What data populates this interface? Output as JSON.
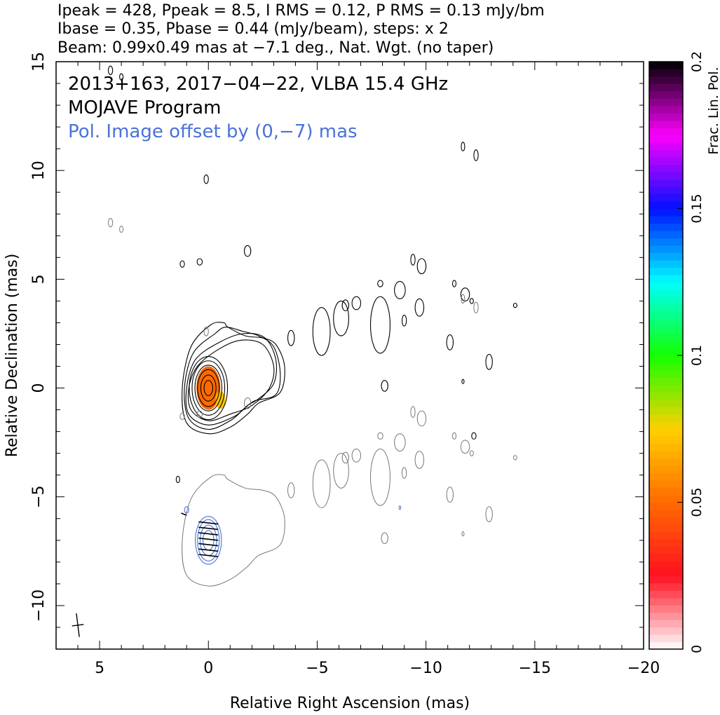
{
  "header": {
    "line1": "Ipeak = 428, Ppeak = 8.5, I RMS = 0.12, P RMS = 0.13 mJy/bm",
    "line2": "Ibase = 0.35, Pbase = 0.44 (mJy/beam), steps: x 2",
    "line3": "Beam: 0.99x0.49 mas at −7.1 deg., Nat. Wgt. (no taper)"
  },
  "annotations": {
    "source": "2013+163, 2017−04−22, VLBA 15.4 GHz",
    "program": "MOJAVE Program",
    "pol_offset": "Pol. Image offset by (0,−7) mas"
  },
  "colors": {
    "total_intensity_contour": "#000000",
    "pol_total_contour": "#777777",
    "pol_intensity_contour": "#4a72d8",
    "annotation_blue": "#4a72d8",
    "evpa_tick": "#000000"
  },
  "chart_data": {
    "type": "heatmap",
    "xlabel": "Relative Right Ascension (mas)",
    "ylabel": "Relative Declination (mas)",
    "xlim": [
      7,
      -20
    ],
    "ylim": [
      -12,
      15
    ],
    "x_ticks": [
      5,
      0,
      -5,
      -10,
      -15,
      -20
    ],
    "x_tick_labels": [
      "5",
      "0",
      "−5",
      "−10",
      "−15",
      "−20"
    ],
    "y_ticks": [
      15,
      10,
      5,
      0,
      -5,
      -10
    ],
    "y_tick_labels": [
      "15",
      "10",
      "5",
      "0",
      "−5",
      "−10"
    ],
    "grid": false,
    "colorbar": {
      "label": "Frac. Lin. Pol.",
      "range": [
        0,
        0.2
      ],
      "ticks": [
        0,
        0.05,
        0.1,
        0.15,
        0.2
      ],
      "tick_labels": [
        "0",
        "0.05",
        "0.1",
        "0.15",
        "0.2"
      ],
      "stops": [
        {
          "v": 0.0,
          "c": "#ffffff"
        },
        {
          "v": 0.025,
          "c": "#ff1020"
        },
        {
          "v": 0.05,
          "c": "#ff6a00"
        },
        {
          "v": 0.075,
          "c": "#ffd000"
        },
        {
          "v": 0.1,
          "c": "#14ff00"
        },
        {
          "v": 0.125,
          "c": "#00ffff"
        },
        {
          "v": 0.15,
          "c": "#0010ff"
        },
        {
          "v": 0.175,
          "c": "#ff00ff"
        },
        {
          "v": 0.2,
          "c": "#000000"
        }
      ]
    },
    "stokes_i_contours": {
      "core_center": [
        0,
        0
      ],
      "levels_mjy": [
        0.35,
        0.7,
        1.4,
        2.8,
        5.6,
        11.2,
        22.4,
        44.8,
        89.6,
        179.2,
        358.4
      ],
      "core_rings": [
        {
          "rx": 0.2,
          "ry": 0.35
        },
        {
          "rx": 0.35,
          "ry": 0.6
        },
        {
          "rx": 0.5,
          "ry": 0.85
        },
        {
          "rx": 0.62,
          "ry": 1.05
        },
        {
          "rx": 0.75,
          "ry": 1.25
        },
        {
          "rx": 0.88,
          "ry": 1.45
        }
      ],
      "extended_contours": [
        [
          [
            0.5,
            1.0
          ],
          [
            -0.5,
            1.8
          ],
          [
            -1.5,
            2.2
          ],
          [
            -2.5,
            2.0
          ],
          [
            -3.0,
            1.0
          ],
          [
            -2.8,
            0.0
          ],
          [
            -2.0,
            -0.8
          ],
          [
            -1.0,
            -1.2
          ],
          [
            0.0,
            -1.5
          ],
          [
            0.8,
            -1.0
          ],
          [
            0.9,
            0.0
          ]
        ],
        [
          [
            0.6,
            1.3
          ],
          [
            -0.5,
            2.1
          ],
          [
            -1.6,
            2.5
          ],
          [
            -2.6,
            2.3
          ],
          [
            -3.1,
            1.3
          ],
          [
            -3.0,
            0.2
          ],
          [
            -2.3,
            -0.5
          ],
          [
            -1.8,
            -0.8
          ],
          [
            -1.2,
            -1.3
          ],
          [
            0.0,
            -1.7
          ],
          [
            0.9,
            -1.2
          ],
          [
            1.0,
            0.0
          ]
        ],
        [
          [
            0.7,
            1.6
          ],
          [
            -0.3,
            2.5
          ],
          [
            -0.8,
            2.8
          ],
          [
            -1.6,
            2.6
          ],
          [
            -2.3,
            2.4
          ],
          [
            -3.0,
            1.9
          ],
          [
            -3.3,
            0.7
          ],
          [
            -3.1,
            -0.3
          ],
          [
            -2.1,
            -0.6
          ],
          [
            -1.6,
            -1.0
          ],
          [
            -1.0,
            -1.5
          ],
          [
            0.0,
            -1.9
          ],
          [
            0.9,
            -1.4
          ],
          [
            1.1,
            0.0
          ]
        ],
        [
          [
            0.8,
            1.9
          ],
          [
            -0.1,
            2.9
          ],
          [
            -0.7,
            3.0
          ],
          [
            -0.9,
            2.8
          ],
          [
            -1.7,
            2.4
          ],
          [
            -2.5,
            2.3
          ],
          [
            -3.1,
            2.0
          ],
          [
            -3.5,
            1.0
          ],
          [
            -3.3,
            -0.2
          ],
          [
            -2.3,
            -0.7
          ],
          [
            -1.8,
            -1.2
          ],
          [
            -1.0,
            -1.8
          ],
          [
            0.0,
            -2.1
          ],
          [
            1.0,
            -1.6
          ],
          [
            1.2,
            0.0
          ]
        ]
      ],
      "jet_blobs": [
        {
          "x": -3.8,
          "y": 2.3,
          "rx": 0.15,
          "ry": 0.35
        },
        {
          "x": -5.2,
          "y": 2.6,
          "rx": 0.4,
          "ry": 1.1
        },
        {
          "x": -6.1,
          "y": 3.2,
          "rx": 0.35,
          "ry": 0.8
        },
        {
          "x": -6.3,
          "y": 3.8,
          "rx": 0.15,
          "ry": 0.25
        },
        {
          "x": -6.8,
          "y": 3.9,
          "rx": 0.2,
          "ry": 0.3
        },
        {
          "x": -7.9,
          "y": 2.9,
          "rx": 0.45,
          "ry": 1.3
        },
        {
          "x": -7.9,
          "y": 4.8,
          "rx": 0.12,
          "ry": 0.15
        },
        {
          "x": -8.8,
          "y": 4.5,
          "rx": 0.25,
          "ry": 0.4
        },
        {
          "x": -9.0,
          "y": 3.1,
          "rx": 0.1,
          "ry": 0.25
        },
        {
          "x": -9.7,
          "y": 3.7,
          "rx": 0.2,
          "ry": 0.4
        },
        {
          "x": -9.4,
          "y": 5.9,
          "rx": 0.1,
          "ry": 0.25
        },
        {
          "x": -9.8,
          "y": 5.6,
          "rx": 0.2,
          "ry": 0.35
        },
        {
          "x": -11.3,
          "y": 4.8,
          "rx": 0.08,
          "ry": 0.15
        },
        {
          "x": -11.8,
          "y": 4.3,
          "rx": 0.2,
          "ry": 0.3
        },
        {
          "x": -12.1,
          "y": 4.0,
          "rx": 0.08,
          "ry": 0.12
        },
        {
          "x": -11.1,
          "y": 2.1,
          "rx": 0.15,
          "ry": 0.35
        },
        {
          "x": -12.9,
          "y": 1.2,
          "rx": 0.15,
          "ry": 0.35
        },
        {
          "x": -8.1,
          "y": 0.1,
          "rx": 0.15,
          "ry": 0.25
        },
        {
          "x": -11.7,
          "y": 11.1,
          "rx": 0.08,
          "ry": 0.2
        },
        {
          "x": -12.3,
          "y": 10.7,
          "rx": 0.1,
          "ry": 0.25
        },
        {
          "x": 0.1,
          "y": 9.6,
          "rx": 0.1,
          "ry": 0.2
        },
        {
          "x": -1.8,
          "y": 6.3,
          "rx": 0.15,
          "ry": 0.25
        },
        {
          "x": 1.2,
          "y": 5.7,
          "rx": 0.1,
          "ry": 0.15
        },
        {
          "x": 0.4,
          "y": 5.8,
          "rx": 0.12,
          "ry": 0.15
        },
        {
          "x": -12.2,
          "y": -2.2,
          "rx": 0.1,
          "ry": 0.15
        },
        {
          "x": -11.7,
          "y": 0.3,
          "rx": 0.05,
          "ry": 0.1
        },
        {
          "x": -14.1,
          "y": 3.8,
          "rx": 0.08,
          "ry": 0.1
        },
        {
          "x": 4.5,
          "y": 14.6,
          "rx": 0.1,
          "ry": 0.2
        },
        {
          "x": 1.4,
          "y": -4.2,
          "rx": 0.08,
          "ry": 0.15
        },
        {
          "x": 4.0,
          "y": 14.3,
          "rx": 0.08,
          "ry": 0.15
        }
      ]
    },
    "pol_contours_offset": [
      0,
      -7
    ],
    "frac_pol_core": {
      "x": 0,
      "y": 0,
      "rx": 0.55,
      "ry": 1.0,
      "value": 0.03
    }
  },
  "beam": {
    "major": 0.99,
    "minor": 0.49,
    "pa": -7.1
  }
}
